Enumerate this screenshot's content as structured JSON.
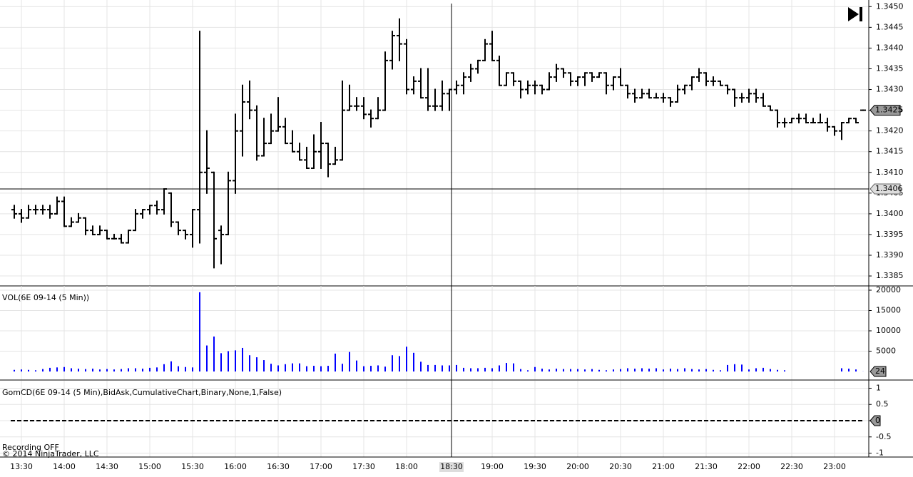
{
  "chart_data": [
    {
      "type": "ohlc",
      "color": "#000000",
      "categories": [
        null,
        "13:30",
        null,
        null,
        null,
        null,
        null,
        "14:00",
        null,
        null,
        null,
        null,
        null,
        "14:30",
        null,
        null,
        null,
        null,
        null,
        "15:00",
        null,
        null,
        null,
        null,
        null,
        "15:30",
        null,
        null,
        null,
        null,
        null,
        "16:00",
        null,
        null,
        null,
        null,
        null,
        "16:30",
        null,
        null,
        null,
        null,
        null,
        "17:00",
        null,
        null,
        null,
        null,
        null,
        "17:30",
        null,
        null,
        null,
        null,
        null,
        "18:00",
        null,
        null,
        null,
        null,
        null,
        null,
        null,
        null,
        null,
        null,
        null,
        "19:00",
        null,
        null,
        null,
        null,
        null,
        "19:30",
        null,
        null,
        null,
        null,
        null,
        "20:00",
        null,
        null,
        null,
        null,
        null,
        "20:30",
        null,
        null,
        null,
        null,
        null,
        "21:00",
        null,
        null,
        null,
        null,
        null,
        "21:30",
        null,
        null,
        null,
        null,
        null,
        "22:00",
        null,
        null,
        null,
        null,
        null,
        "22:30",
        null,
        null,
        null,
        null,
        null,
        "23:00",
        null,
        null,
        null,
        null
      ],
      "open": [
        1.3401,
        1.34,
        1.3399,
        1.3401,
        1.3401,
        1.3401,
        1.34,
        1.3403,
        1.3397,
        1.3398,
        1.3399,
        1.3396,
        1.3395,
        1.3396,
        1.3394,
        1.3394,
        1.3393,
        1.3396,
        1.34,
        1.3401,
        1.3402,
        1.3401,
        1.3405,
        1.3398,
        1.3396,
        1.3395,
        1.3401,
        1.341,
        1.341,
        1.3396,
        1.3395,
        1.3408,
        1.342,
        1.3427,
        1.3425,
        1.3414,
        1.3417,
        1.342,
        1.3421,
        1.3417,
        1.3415,
        1.3413,
        1.3411,
        1.3415,
        1.3417,
        1.3412,
        1.3413,
        1.3425,
        1.3426,
        1.3426,
        1.3424,
        1.3423,
        1.3425,
        1.3437,
        1.3443,
        1.3441,
        1.343,
        1.3432,
        1.3428,
        1.3426,
        1.3426,
        1.3429,
        1.343,
        1.3431,
        1.3433,
        1.3435,
        1.3437,
        1.3441,
        1.3437,
        1.3431,
        1.3434,
        1.3432,
        1.343,
        1.3431,
        1.3431,
        1.343,
        1.3433,
        1.3435,
        1.3434,
        1.3432,
        1.3433,
        1.3434,
        1.3433,
        1.3434,
        1.3431,
        1.3433,
        1.3431,
        1.3429,
        1.3428,
        1.3429,
        1.3428,
        1.3428,
        1.3428,
        1.3427,
        1.343,
        1.3431,
        1.3433,
        1.3434,
        1.3432,
        1.3432,
        1.3431,
        1.343,
        1.3428,
        1.3428,
        1.3429,
        1.3428,
        1.3426,
        1.3425,
        1.3422,
        1.3422,
        1.3423,
        1.3423,
        1.3422,
        1.3422,
        1.3422,
        1.3421,
        1.342,
        1.3422,
        1.3423,
        1.3425
      ],
      "high": [
        1.3402,
        1.3401,
        1.3402,
        1.3402,
        1.3402,
        1.3402,
        1.3404,
        1.3404,
        1.3399,
        1.34,
        1.3399,
        1.3397,
        1.3397,
        1.3396,
        1.3395,
        1.3395,
        1.3396,
        1.3401,
        1.3401,
        1.3402,
        1.3403,
        1.3406,
        1.3405,
        1.3398,
        1.3396,
        1.3401,
        1.3444,
        1.342,
        1.341,
        1.3397,
        1.341,
        1.3424,
        1.3431,
        1.3432,
        1.3426,
        1.3423,
        1.3424,
        1.3428,
        1.3423,
        1.342,
        1.3417,
        1.3416,
        1.3419,
        1.3422,
        1.3417,
        1.3416,
        1.3432,
        1.3431,
        1.3428,
        1.3428,
        1.3425,
        1.3428,
        1.3439,
        1.3444,
        1.3447,
        1.3442,
        1.3433,
        1.3435,
        1.3435,
        1.343,
        1.3432,
        1.343,
        1.3432,
        1.3434,
        1.3436,
        1.3437,
        1.3442,
        1.3444,
        1.3438,
        1.3434,
        1.3434,
        1.3432,
        1.3432,
        1.3432,
        1.3431,
        1.3434,
        1.3436,
        1.3435,
        1.3434,
        1.3433,
        1.3434,
        1.3434,
        1.3434,
        1.3434,
        1.3433,
        1.3435,
        1.3431,
        1.343,
        1.343,
        1.343,
        1.3429,
        1.3429,
        1.3428,
        1.3431,
        1.3431,
        1.3433,
        1.3435,
        1.3434,
        1.3433,
        1.3432,
        1.3431,
        1.343,
        1.3429,
        1.343,
        1.343,
        1.3429,
        1.3426,
        1.3425,
        1.3423,
        1.3423,
        1.3424,
        1.3424,
        1.3423,
        1.3424,
        1.3423,
        1.3421,
        1.3422,
        1.3423,
        1.3423,
        1.3425
      ],
      "low": [
        1.3399,
        1.3398,
        1.3399,
        1.34,
        1.34,
        1.3399,
        1.34,
        1.3397,
        1.3397,
        1.3398,
        1.3395,
        1.3395,
        1.3395,
        1.3394,
        1.3394,
        1.3393,
        1.3393,
        1.3396,
        1.3399,
        1.34,
        1.34,
        1.34,
        1.3397,
        1.3395,
        1.3394,
        1.3392,
        1.3393,
        1.3405,
        1.3387,
        1.3388,
        1.3395,
        1.3405,
        1.3414,
        1.3423,
        1.3413,
        1.3414,
        1.3417,
        1.342,
        1.3417,
        1.3415,
        1.3413,
        1.3411,
        1.3411,
        1.3411,
        1.3409,
        1.3412,
        1.3413,
        1.3425,
        1.3425,
        1.3423,
        1.3421,
        1.3423,
        1.3425,
        1.3435,
        1.3437,
        1.3429,
        1.3429,
        1.3428,
        1.3425,
        1.3425,
        1.3425,
        1.3425,
        1.3429,
        1.3429,
        1.3432,
        1.3434,
        1.3437,
        1.3437,
        1.3431,
        1.3431,
        1.3431,
        1.3428,
        1.3429,
        1.3429,
        1.3429,
        1.343,
        1.3432,
        1.3433,
        1.3431,
        1.3431,
        1.3431,
        1.3432,
        1.3433,
        1.3429,
        1.343,
        1.3431,
        1.3428,
        1.3427,
        1.3428,
        1.3428,
        1.3428,
        1.3427,
        1.3426,
        1.3427,
        1.3429,
        1.343,
        1.3432,
        1.3431,
        1.3431,
        1.3431,
        1.3429,
        1.3426,
        1.3427,
        1.3427,
        1.3427,
        1.3426,
        1.3425,
        1.3421,
        1.3421,
        1.3422,
        1.3422,
        1.3422,
        1.3422,
        1.3422,
        1.342,
        1.3419,
        1.3418,
        1.3422,
        1.3422,
        1.3425
      ],
      "close": [
        1.34,
        1.3399,
        1.3401,
        1.3401,
        1.3401,
        1.34,
        1.3403,
        1.3397,
        1.3398,
        1.3399,
        1.3396,
        1.3395,
        1.3396,
        1.3394,
        1.3394,
        1.3393,
        1.3396,
        1.34,
        1.3401,
        1.3402,
        1.3401,
        1.3406,
        1.3398,
        1.3396,
        1.3395,
        1.3401,
        1.341,
        1.3411,
        1.3394,
        1.3395,
        1.3408,
        1.342,
        1.3427,
        1.3425,
        1.3414,
        1.3417,
        1.342,
        1.3421,
        1.3417,
        1.3415,
        1.3413,
        1.3411,
        1.3415,
        1.3417,
        1.3412,
        1.3413,
        1.3425,
        1.3426,
        1.3426,
        1.3424,
        1.3423,
        1.3425,
        1.3437,
        1.3443,
        1.3441,
        1.343,
        1.3432,
        1.3428,
        1.3426,
        1.3426,
        1.3429,
        1.343,
        1.3431,
        1.3433,
        1.3435,
        1.3437,
        1.3441,
        1.3437,
        1.3431,
        1.3434,
        1.3432,
        1.343,
        1.3431,
        1.3431,
        1.343,
        1.3433,
        1.3435,
        1.3434,
        1.3432,
        1.3433,
        1.3434,
        1.3433,
        1.3434,
        1.3431,
        1.3433,
        1.3431,
        1.3429,
        1.3428,
        1.3429,
        1.3428,
        1.3428,
        1.3428,
        1.3427,
        1.343,
        1.3431,
        1.3433,
        1.3434,
        1.3432,
        1.3432,
        1.3431,
        1.343,
        1.3428,
        1.3428,
        1.3429,
        1.3428,
        1.3426,
        1.3425,
        1.3422,
        1.3422,
        1.3423,
        1.3423,
        1.3422,
        1.3422,
        1.3422,
        1.3421,
        1.342,
        1.3422,
        1.3423,
        1.3422,
        1.3425
      ],
      "ylim": [
        1.33826,
        1.34516
      ],
      "yticks": [
        {
          "value": 1.345,
          "label": "1.3450"
        },
        1.3445,
        {
          "value": 1.344,
          "label": "1.3440"
        },
        1.3435,
        {
          "value": 1.343,
          "label": "1.3430"
        },
        1.3425,
        {
          "value": 1.342,
          "label": "1.3420"
        },
        1.3415,
        {
          "value": 1.341,
          "label": "1.3410"
        },
        1.3405,
        {
          "value": 1.34,
          "label": "1.3400"
        },
        1.3395,
        {
          "value": 1.339,
          "label": "1.3390"
        },
        1.3385
      ],
      "grid": true,
      "crosshair": {
        "time": "18:30",
        "price": 1.3406
      }
    },
    {
      "type": "bar",
      "title": "VOL(6E 09-14 (5 Min))",
      "color": "#0000ff",
      "values": [
        400,
        500,
        400,
        300,
        600,
        900,
        1000,
        1100,
        800,
        700,
        600,
        700,
        500,
        600,
        500,
        600,
        800,
        800,
        700,
        900,
        1000,
        1800,
        2500,
        1300,
        1100,
        1000,
        19500,
        6400,
        8600,
        4500,
        5000,
        5200,
        5800,
        4000,
        3500,
        2800,
        1900,
        1500,
        1800,
        2000,
        2000,
        1300,
        1400,
        1300,
        1400,
        4400,
        1900,
        4800,
        2700,
        1300,
        1400,
        1500,
        1200,
        4000,
        3800,
        6100,
        4600,
        2400,
        1600,
        1600,
        1500,
        1500,
        1600,
        900,
        800,
        800,
        900,
        800,
        1500,
        2100,
        2000,
        600,
        300,
        1100,
        700,
        500,
        700,
        600,
        600,
        600,
        500,
        600,
        400,
        300,
        500,
        600,
        800,
        700,
        800,
        700,
        800,
        500,
        700,
        600,
        800,
        600,
        500,
        600,
        400,
        300,
        1600,
        1800,
        1700,
        500,
        800,
        900,
        600,
        400,
        300,
        0,
        0,
        0,
        0,
        0,
        0,
        0,
        800,
        700,
        500,
        24
      ],
      "ylim": [
        -2100,
        21050
      ],
      "yticks": [
        5000,
        10000,
        15000,
        20000
      ],
      "grid": true
    },
    {
      "type": "line",
      "title": "GomCD(6E 09-14 (5 Min),BidAsk,CumulativeChart,Binary,None,1,False)",
      "color": "#000000",
      "values": [
        0,
        0,
        0,
        0,
        0,
        0,
        0,
        0,
        0,
        0,
        0,
        0,
        0,
        0,
        0,
        0,
        0,
        0,
        0,
        0,
        0,
        0,
        0,
        0,
        0,
        0,
        0,
        0,
        0,
        0,
        0,
        0,
        0,
        0,
        0,
        0,
        0,
        0,
        0,
        0,
        0,
        0,
        0,
        0,
        0,
        0,
        0,
        0,
        0,
        0,
        0,
        0,
        0,
        0,
        0,
        0,
        0,
        0,
        0,
        0,
        0,
        0,
        0,
        0,
        0,
        0,
        0,
        0,
        0,
        0,
        0,
        0,
        0,
        0,
        0,
        0,
        0,
        0,
        0,
        0,
        0,
        0,
        0,
        0,
        0,
        0,
        0,
        0,
        0,
        0,
        0,
        0,
        0,
        0,
        0,
        0,
        0,
        0,
        0,
        0,
        0,
        0,
        0,
        0,
        0,
        0,
        0,
        0,
        0,
        0,
        0,
        0,
        0,
        0,
        0,
        0,
        0,
        0,
        0,
        0
      ],
      "ylim": [
        -1.12,
        1.23
      ],
      "yticks": [
        1,
        0.5,
        0,
        -0.5,
        -1
      ],
      "grid": true
    }
  ],
  "footer": {
    "recording": "Recording OFF",
    "copyright": "© 2014 NinjaTrader, LLC"
  }
}
